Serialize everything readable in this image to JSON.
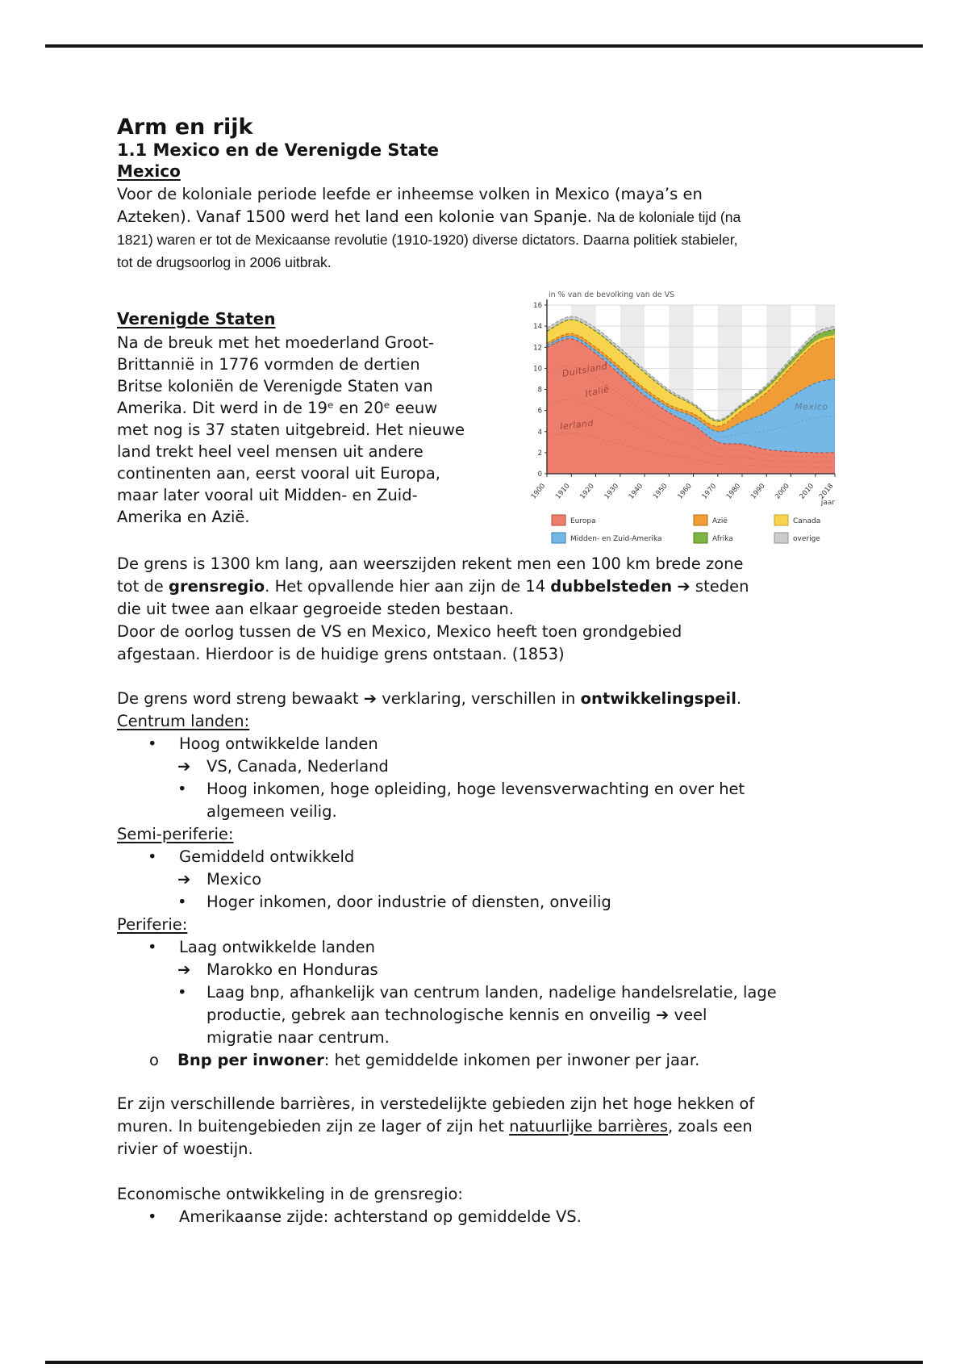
{
  "page": {
    "title": "Arm en rijk",
    "subtitle": "1.1 Mexico en de Verenigde State"
  },
  "mexico": {
    "heading": "Mexico",
    "body_large": "Voor de koloniale periode leefde er inheemse volken in Mexico (maya’s en\nAzteken). Vanaf 1500 werd het land een kolonie van Spanje. ",
    "body_small": "Na de koloniale tijd (na\n1821) waren er tot de Mexicaanse revolutie (1910-1920) diverse dictators. Daarna politiek stabieler,\ntot de drugsoorlog in 2006 uitbrak."
  },
  "vs": {
    "heading": "Verenigde Staten",
    "body": "Na de breuk met het moederland Groot-\nBrittannië in 1776 vormden de dertien\nBritse koloniën de Verenigde Staten van\nAmerika. Dit werd in de 19ᵉ en 20ᵉ eeuw\nmet nog is 37 staten uitgebreid. Het nieuwe\nland trekt heel veel mensen uit andere\ncontinenten aan, eerst vooral uit Europa,\nmaar later vooral uit Midden- en Zuid-\nAmerika en Azië."
  },
  "grens": {
    "seg1": "De grens is 1300 km lang, aan weerszijden rekent men een 100 km brede zone\ntot de ",
    "seg2_bold": "grensregio",
    "seg3": ". Het opvallende hier aan zijn de 14 ",
    "seg4_bold": "dubbelsteden",
    "seg5": " ➔ steden\ndie uit twee aan elkaar gegroeide steden bestaan.\nDoor de oorlog tussen de VS en Mexico, Mexico heeft toen grondgebied\nafgestaan. Hierdoor is de huidige grens ontstaan. (1853)"
  },
  "bewaakt": {
    "seg1": "De grens word streng bewaakt ➔ verklaring, verschillen in ",
    "seg2_bold": "ontwikkelingspeil",
    "seg3": "."
  },
  "lists": {
    "centrum": {
      "label": "Centrum landen:",
      "items": [
        {
          "marker": "•",
          "text": "Hoog ontwikkelde landen"
        },
        {
          "marker": "➔",
          "text": "VS, Canada, Nederland"
        },
        {
          "marker": "•",
          "text": "Hoog inkomen, hoge opleiding, hoge levensverwachting en over het\nalgemeen veilig."
        }
      ]
    },
    "semi": {
      "label": "Semi-periferie:",
      "items": [
        {
          "marker": "•",
          "text": "Gemiddeld ontwikkeld"
        },
        {
          "marker": "➔",
          "text": "Mexico"
        },
        {
          "marker": "•",
          "text": "Hoger inkomen, door industrie of diensten, onveilig"
        }
      ]
    },
    "periferie": {
      "label": "Periferie:",
      "items": [
        {
          "marker": "•",
          "text": "Laag ontwikkelde landen"
        },
        {
          "marker": "➔",
          "text": "Marokko en Honduras"
        },
        {
          "marker": "•",
          "text": "Laag bnp, afhankelijk van centrum landen, nadelige handelsrelatie, lage\nproductie, gebrek aan technologische kennis en onveilig ➔ veel\nmigratie naar centrum."
        }
      ],
      "o_item": {
        "marker": "o",
        "bold": "Bnp per inwoner",
        "rest": ": het gemiddelde inkomen per inwoner per jaar."
      }
    },
    "econ": {
      "label": "Economische ontwikkeling in de grensregio:",
      "items": [
        {
          "marker": "•",
          "text": "Amerikaanse zijde: achterstand op gemiddelde VS."
        }
      ]
    }
  },
  "barrieres": {
    "seg1": "Er zijn verschillende barrières, in verstedelijkte gebieden zijn het hoge hekken of\nmuren. In buitengebieden zijn ze lager of zijn het ",
    "seg2_underline": "natuurlijke barrières",
    "seg3": ", zoals een\nrivier of woestijn."
  },
  "chart_data": {
    "type": "area",
    "title": "in % van de bevolking van de VS",
    "xlabel": "jaar",
    "ylim": [
      0,
      16
    ],
    "ytick_step": 2,
    "x": [
      1900,
      1910,
      1920,
      1930,
      1940,
      1950,
      1960,
      1970,
      1980,
      1990,
      2000,
      2010,
      2018
    ],
    "series": [
      {
        "name": "Europa",
        "color": "#ee7e6c",
        "edge": "#b04a38",
        "values": [
          12.0,
          12.8,
          11.4,
          9.4,
          7.4,
          5.8,
          4.6,
          3.0,
          2.8,
          2.3,
          2.1,
          2.0,
          2.0
        ]
      },
      {
        "name": "Midden- en Zuid-Amerika",
        "color": "#74b8e8",
        "edge": "#3d7ba8",
        "values": [
          0.2,
          0.25,
          0.3,
          0.4,
          0.45,
          0.5,
          0.8,
          1.0,
          2.1,
          3.5,
          5.2,
          6.6,
          7.0
        ]
      },
      {
        "name": "Azië",
        "color": "#f09d38",
        "edge": "#b5700e",
        "values": [
          0.2,
          0.25,
          0.3,
          0.3,
          0.25,
          0.25,
          0.3,
          0.5,
          1.1,
          1.9,
          2.8,
          3.7,
          3.9
        ]
      },
      {
        "name": "Canada",
        "color": "#f8d44c",
        "edge": "#c7a125",
        "values": [
          1.1,
          1.3,
          1.5,
          1.5,
          1.5,
          1.2,
          0.8,
          0.45,
          0.4,
          0.35,
          0.3,
          0.3,
          0.3
        ]
      },
      {
        "name": "Afrika",
        "color": "#7cb342",
        "edge": "#53801f",
        "values": [
          0.02,
          0.02,
          0.02,
          0.02,
          0.02,
          0.02,
          0.03,
          0.05,
          0.1,
          0.2,
          0.3,
          0.45,
          0.5
        ]
      },
      {
        "name": "overige",
        "color": "#cccccc",
        "edge": "#8f8f8f",
        "values": [
          0.3,
          0.3,
          0.3,
          0.3,
          0.25,
          0.2,
          0.15,
          0.12,
          0.15,
          0.2,
          0.25,
          0.3,
          0.3
        ]
      }
    ],
    "annotations": [
      {
        "text": "Duitsland",
        "year": 1906.5,
        "value": 9.2,
        "color": "#9c4335",
        "rotate": -10
      },
      {
        "text": "Italië",
        "year": 1916,
        "value": 7.3,
        "color": "#9c4335",
        "rotate": -12
      },
      {
        "text": "Ierland",
        "year": 1905.5,
        "value": 4.2,
        "color": "#9c4335",
        "rotate": -6
      },
      {
        "text": "Mexico",
        "year": 2001.5,
        "value": 6.1,
        "color": "#5d7e94",
        "rotate": 0
      }
    ],
    "legend_order": [
      [
        "Europa",
        "Azië",
        "Canada"
      ],
      [
        "Midden- en Zuid-Amerika",
        "Afrika",
        "overige"
      ]
    ]
  }
}
